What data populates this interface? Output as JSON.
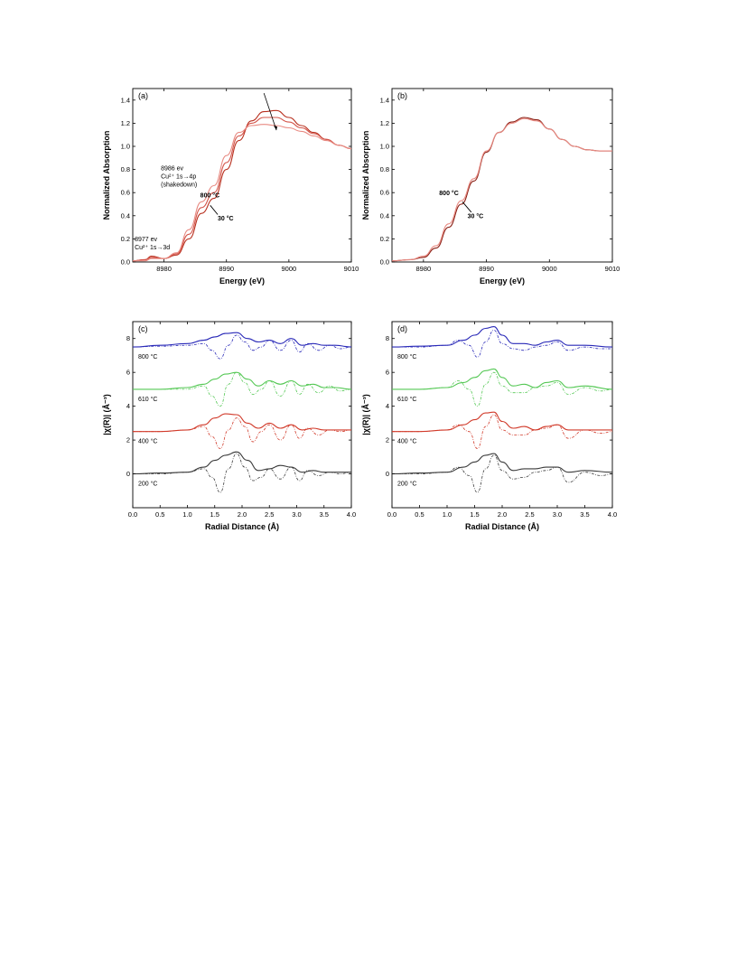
{
  "chart_data": [
    {
      "id": "a",
      "type": "line",
      "panel_label": "(a)",
      "xlabel": "Energy (eV)",
      "ylabel": "Normalized Absorption",
      "xlim": [
        8975,
        9010
      ],
      "ylim": [
        0.0,
        1.5
      ],
      "xticks": [
        8980,
        8990,
        9000,
        9010
      ],
      "yticks": [
        0.0,
        0.2,
        0.4,
        0.6,
        0.8,
        1.0,
        1.2,
        1.4
      ],
      "ytick_labels": [
        "0.0",
        "0.2",
        "0.4",
        "0.6",
        "0.8",
        "1.0",
        "1.2",
        "1.4"
      ],
      "annotations": [
        {
          "lines": [
            "8986 ev",
            "Cu²⁺ 1s→4p",
            "(shakedown)"
          ],
          "style": "normal"
        },
        {
          "lines": [
            "800 °C"
          ],
          "style": "bold"
        },
        {
          "lines": [
            "30 °C"
          ],
          "style": "bold"
        },
        {
          "lines": [
            "8977 ev",
            "Cu²⁺ 1s→3d"
          ],
          "style": "normal"
        }
      ],
      "series": [
        {
          "color": "#b8301f",
          "x": [
            8975,
            8977,
            8978,
            8980,
            8982,
            8984,
            8986,
            8988,
            8990,
            8992,
            8994,
            8996,
            8998,
            9000,
            9002,
            9004,
            9006,
            9008,
            9010
          ],
          "values": [
            0.01,
            0.02,
            0.05,
            0.03,
            0.06,
            0.2,
            0.42,
            0.55,
            0.8,
            1.05,
            1.22,
            1.3,
            1.31,
            1.25,
            1.18,
            1.12,
            1.06,
            1.01,
            0.98
          ]
        },
        {
          "color": "#d4554a",
          "x": [
            8975,
            8977,
            8978,
            8980,
            8982,
            8984,
            8986,
            8988,
            8990,
            8992,
            8994,
            8996,
            8998,
            9000,
            9002,
            9004,
            9006,
            9008,
            9010
          ],
          "values": [
            0.01,
            0.02,
            0.04,
            0.03,
            0.07,
            0.24,
            0.47,
            0.6,
            0.86,
            1.09,
            1.2,
            1.25,
            1.25,
            1.21,
            1.16,
            1.11,
            1.06,
            1.01,
            0.98
          ]
        },
        {
          "color": "#e88a82",
          "x": [
            8975,
            8977,
            8978,
            8980,
            8982,
            8984,
            8986,
            8988,
            8990,
            8992,
            8994,
            8996,
            8998,
            9000,
            9002,
            9004,
            9006,
            9008,
            9010
          ],
          "values": [
            0.01,
            0.01,
            0.03,
            0.03,
            0.08,
            0.28,
            0.52,
            0.66,
            0.92,
            1.12,
            1.18,
            1.19,
            1.18,
            1.16,
            1.13,
            1.09,
            1.05,
            1.01,
            0.98
          ]
        }
      ]
    },
    {
      "id": "b",
      "type": "line",
      "panel_label": "(b)",
      "xlabel": "Energy (eV)",
      "ylabel": "Normalized Absorption",
      "xlim": [
        8975,
        9010
      ],
      "ylim": [
        0.0,
        1.5
      ],
      "xticks": [
        8980,
        8990,
        9000,
        9010
      ],
      "yticks": [
        0.0,
        0.2,
        0.4,
        0.6,
        0.8,
        1.0,
        1.2,
        1.4
      ],
      "ytick_labels": [
        "0.0",
        "0.2",
        "0.4",
        "0.6",
        "0.8",
        "1.0",
        "1.2",
        "1.4"
      ],
      "annotations": [
        {
          "lines": [
            "800 °C"
          ],
          "style": "bold"
        },
        {
          "lines": [
            "30 °C"
          ],
          "style": "bold"
        }
      ],
      "series": [
        {
          "color": "#8a1f14",
          "x": [
            8975,
            8978,
            8980,
            8982,
            8984,
            8986,
            8988,
            8990,
            8992,
            8994,
            8996,
            8998,
            9000,
            9002,
            9004,
            9006,
            9008,
            9010
          ],
          "values": [
            0.01,
            0.02,
            0.04,
            0.12,
            0.3,
            0.5,
            0.7,
            0.95,
            1.12,
            1.21,
            1.25,
            1.23,
            1.15,
            1.06,
            1.0,
            0.97,
            0.96,
            0.96
          ]
        },
        {
          "color": "#e88a82",
          "x": [
            8975,
            8978,
            8980,
            8982,
            8984,
            8986,
            8988,
            8990,
            8992,
            8994,
            8996,
            8998,
            9000,
            9002,
            9004,
            9006,
            9008,
            9010
          ],
          "values": [
            0.01,
            0.02,
            0.05,
            0.14,
            0.33,
            0.53,
            0.72,
            0.96,
            1.12,
            1.2,
            1.24,
            1.22,
            1.15,
            1.06,
            1.0,
            0.97,
            0.96,
            0.96
          ]
        }
      ]
    },
    {
      "id": "c",
      "type": "line",
      "panel_label": "(c)",
      "xlabel": "Radial Distance (Å)",
      "ylabel": "|χ(R)| (Å⁻³)",
      "xlim": [
        0.0,
        4.0
      ],
      "ylim": [
        -2.0,
        9.0
      ],
      "xticks": [
        0.0,
        0.5,
        1.0,
        1.5,
        2.0,
        2.5,
        3.0,
        3.5,
        4.0
      ],
      "xtick_labels": [
        "0.0",
        "0.5",
        "1.0",
        "1.5",
        "2.0",
        "2.5",
        "3.0",
        "3.5",
        "4.0"
      ],
      "yticks": [
        0,
        2,
        4,
        6,
        8
      ],
      "series": [
        {
          "name": "800 °C",
          "color": "#2a2ab8",
          "x": [
            0,
            0.5,
            1.0,
            1.3,
            1.5,
            1.7,
            1.9,
            2.1,
            2.3,
            2.5,
            2.7,
            2.9,
            3.1,
            3.3,
            3.5,
            3.7,
            4.0
          ],
          "values": [
            7.5,
            7.6,
            7.7,
            7.9,
            8.1,
            8.3,
            8.35,
            8.0,
            7.8,
            7.9,
            7.7,
            8.0,
            7.6,
            7.7,
            7.6,
            7.6,
            7.5
          ]
        },
        {
          "name": "800 °C",
          "style": "dash-dot",
          "color": "#2a2ab8",
          "x": [
            0,
            0.5,
            1.0,
            1.3,
            1.45,
            1.6,
            1.75,
            1.9,
            2.05,
            2.2,
            2.35,
            2.5,
            2.7,
            2.9,
            3.05,
            3.2,
            3.4,
            3.6,
            3.8,
            4.0
          ],
          "values": [
            7.5,
            7.55,
            7.6,
            7.7,
            7.3,
            6.8,
            7.6,
            8.2,
            7.8,
            7.3,
            7.5,
            7.9,
            7.3,
            7.9,
            7.2,
            7.7,
            7.3,
            7.6,
            7.4,
            7.5
          ]
        },
        {
          "name": "610 °C",
          "color": "#55c855",
          "x": [
            0,
            0.5,
            1.0,
            1.3,
            1.5,
            1.7,
            1.9,
            2.1,
            2.3,
            2.5,
            2.7,
            2.9,
            3.1,
            3.3,
            3.5,
            3.7,
            4.0
          ],
          "values": [
            5.0,
            5.0,
            5.1,
            5.3,
            5.6,
            5.9,
            6.0,
            5.6,
            5.2,
            5.5,
            5.3,
            5.5,
            5.2,
            5.3,
            5.1,
            5.1,
            5.0
          ]
        },
        {
          "name": "610 °C",
          "style": "dash-dot",
          "color": "#55c855",
          "x": [
            0,
            0.5,
            1.0,
            1.3,
            1.45,
            1.6,
            1.75,
            1.9,
            2.05,
            2.2,
            2.35,
            2.5,
            2.7,
            2.9,
            3.05,
            3.2,
            3.4,
            3.6,
            3.8,
            4.0
          ],
          "values": [
            5.0,
            5.0,
            5.0,
            5.2,
            4.6,
            4.0,
            5.3,
            6.0,
            5.4,
            4.7,
            5.0,
            5.5,
            4.6,
            5.5,
            4.7,
            5.3,
            4.8,
            5.2,
            4.9,
            5.0
          ]
        },
        {
          "name": "400 °C",
          "color": "#d13a2a",
          "x": [
            0,
            0.5,
            1.0,
            1.3,
            1.5,
            1.7,
            1.9,
            2.1,
            2.3,
            2.5,
            2.7,
            2.9,
            3.1,
            3.3,
            3.5,
            3.7,
            4.0
          ],
          "values": [
            2.5,
            2.5,
            2.6,
            2.9,
            3.3,
            3.55,
            3.5,
            3.0,
            2.7,
            3.0,
            2.7,
            2.9,
            2.6,
            2.7,
            2.6,
            2.6,
            2.6
          ]
        },
        {
          "name": "400 °C",
          "style": "dash-dot",
          "color": "#d13a2a",
          "x": [
            0,
            0.5,
            1.0,
            1.3,
            1.45,
            1.6,
            1.75,
            1.9,
            2.05,
            2.2,
            2.35,
            2.5,
            2.7,
            2.9,
            3.05,
            3.2,
            3.4,
            3.6,
            3.8,
            4.0
          ],
          "values": [
            2.5,
            2.5,
            2.6,
            2.8,
            2.2,
            1.5,
            2.6,
            3.3,
            2.8,
            1.9,
            2.5,
            2.9,
            2.0,
            2.9,
            2.1,
            2.7,
            2.3,
            2.6,
            2.5,
            2.6
          ]
        },
        {
          "name": "200 °C",
          "color": "#3a3a3a",
          "x": [
            0,
            0.5,
            1.0,
            1.3,
            1.5,
            1.7,
            1.9,
            2.1,
            2.3,
            2.5,
            2.7,
            2.9,
            3.1,
            3.3,
            3.5,
            3.7,
            4.0
          ],
          "values": [
            0.0,
            0.05,
            0.1,
            0.4,
            0.8,
            1.1,
            1.3,
            0.8,
            0.2,
            0.3,
            0.5,
            0.4,
            0.1,
            0.2,
            0.1,
            0.1,
            0.1
          ]
        },
        {
          "name": "200 °C",
          "style": "dash-dot",
          "color": "#3a3a3a",
          "x": [
            0,
            0.5,
            1.0,
            1.3,
            1.45,
            1.6,
            1.75,
            1.9,
            2.05,
            2.2,
            2.35,
            2.5,
            2.7,
            2.9,
            3.05,
            3.2,
            3.4,
            3.6,
            3.8,
            4.0
          ],
          "values": [
            0.0,
            0.0,
            0.1,
            0.3,
            -0.2,
            -1.1,
            0.3,
            1.2,
            0.4,
            -0.4,
            -0.2,
            0.3,
            -0.3,
            0.4,
            -0.4,
            0.2,
            -0.1,
            0.1,
            0.0,
            0.1
          ]
        }
      ]
    },
    {
      "id": "d",
      "type": "line",
      "panel_label": "(d)",
      "xlabel": "Radial Distance (Å)",
      "ylabel": "|χ(R)| (Å⁻³)",
      "xlim": [
        0.0,
        4.0
      ],
      "ylim": [
        -2.0,
        9.0
      ],
      "xticks": [
        0.0,
        0.5,
        1.0,
        1.5,
        2.0,
        2.5,
        3.0,
        3.5,
        4.0
      ],
      "xtick_labels": [
        "0.0",
        "0.5",
        "1.0",
        "1.5",
        "2.0",
        "2.5",
        "3.0",
        "3.5",
        "4.0"
      ],
      "yticks": [
        0,
        2,
        4,
        6,
        8
      ],
      "series": [
        {
          "name": "800 °C",
          "color": "#2a2ab8",
          "x": [
            0,
            0.5,
            1.0,
            1.3,
            1.5,
            1.7,
            1.85,
            2.0,
            2.2,
            2.4,
            2.6,
            2.8,
            3.0,
            3.2,
            3.5,
            4.0
          ],
          "values": [
            7.5,
            7.55,
            7.6,
            7.9,
            8.2,
            8.6,
            8.7,
            8.2,
            7.7,
            7.7,
            7.6,
            7.8,
            7.9,
            7.6,
            7.6,
            7.5
          ]
        },
        {
          "name": "800 °C",
          "style": "dash-dot",
          "color": "#2a2ab8",
          "x": [
            0,
            0.5,
            1.0,
            1.2,
            1.4,
            1.55,
            1.7,
            1.85,
            2.0,
            2.2,
            2.4,
            2.6,
            2.8,
            3.0,
            3.2,
            3.5,
            3.8,
            4.0
          ],
          "values": [
            7.5,
            7.5,
            7.6,
            7.9,
            7.6,
            6.9,
            7.8,
            8.5,
            7.7,
            7.4,
            7.3,
            7.5,
            7.6,
            7.8,
            7.3,
            7.5,
            7.4,
            7.4
          ]
        },
        {
          "name": "610 °C",
          "color": "#55c855",
          "x": [
            0,
            0.5,
            1.0,
            1.3,
            1.5,
            1.7,
            1.85,
            2.0,
            2.2,
            2.4,
            2.6,
            2.8,
            3.0,
            3.2,
            3.5,
            4.0
          ],
          "values": [
            5.0,
            5.0,
            5.1,
            5.4,
            5.7,
            6.1,
            6.2,
            5.7,
            5.2,
            5.3,
            5.1,
            5.4,
            5.5,
            5.1,
            5.2,
            5.0
          ]
        },
        {
          "name": "610 °C",
          "style": "dash-dot",
          "color": "#55c855",
          "x": [
            0,
            0.5,
            1.0,
            1.2,
            1.4,
            1.55,
            1.7,
            1.85,
            2.0,
            2.2,
            2.4,
            2.6,
            2.8,
            3.0,
            3.2,
            3.5,
            3.8,
            4.0
          ],
          "values": [
            5.0,
            5.0,
            5.1,
            5.5,
            5.0,
            4.0,
            5.3,
            6.0,
            5.2,
            4.8,
            4.8,
            5.1,
            5.2,
            5.4,
            4.7,
            5.1,
            4.9,
            5.0
          ]
        },
        {
          "name": "400 °C",
          "color": "#d13a2a",
          "x": [
            0,
            0.5,
            1.0,
            1.3,
            1.5,
            1.7,
            1.85,
            2.0,
            2.2,
            2.4,
            2.6,
            2.8,
            3.0,
            3.2,
            3.5,
            4.0
          ],
          "values": [
            2.5,
            2.5,
            2.6,
            2.9,
            3.2,
            3.6,
            3.65,
            3.1,
            2.7,
            2.8,
            2.6,
            2.8,
            2.9,
            2.6,
            2.6,
            2.6
          ]
        },
        {
          "name": "400 °C",
          "style": "dash-dot",
          "color": "#d13a2a",
          "x": [
            0,
            0.5,
            1.0,
            1.2,
            1.4,
            1.55,
            1.7,
            1.85,
            2.0,
            2.2,
            2.4,
            2.6,
            2.8,
            3.0,
            3.2,
            3.5,
            3.8,
            4.0
          ],
          "values": [
            2.5,
            2.5,
            2.6,
            2.9,
            2.5,
            1.5,
            2.8,
            3.5,
            2.6,
            2.3,
            2.3,
            2.6,
            2.7,
            2.9,
            2.1,
            2.6,
            2.4,
            2.5
          ]
        },
        {
          "name": "200 °C",
          "color": "#3a3a3a",
          "x": [
            0,
            0.5,
            1.0,
            1.3,
            1.5,
            1.7,
            1.85,
            2.0,
            2.2,
            2.4,
            2.6,
            2.8,
            3.0,
            3.2,
            3.5,
            4.0
          ],
          "values": [
            0.0,
            0.05,
            0.1,
            0.4,
            0.7,
            1.1,
            1.2,
            0.7,
            0.2,
            0.3,
            0.3,
            0.4,
            0.4,
            0.1,
            0.2,
            0.1
          ]
        },
        {
          "name": "200 °C",
          "style": "dash-dot",
          "color": "#3a3a3a",
          "x": [
            0,
            0.5,
            1.0,
            1.2,
            1.4,
            1.55,
            1.7,
            1.85,
            2.0,
            2.2,
            2.4,
            2.6,
            2.8,
            3.0,
            3.2,
            3.5,
            3.8,
            4.0
          ],
          "values": [
            0.0,
            0.0,
            0.1,
            0.4,
            -0.1,
            -1.1,
            0.3,
            1.1,
            0.2,
            -0.3,
            -0.2,
            0.1,
            0.2,
            0.4,
            -0.5,
            0.1,
            -0.1,
            0.0
          ]
        }
      ]
    }
  ]
}
